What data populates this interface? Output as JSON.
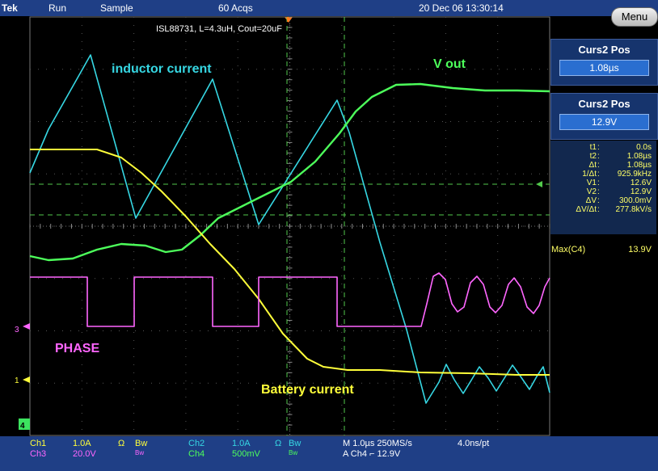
{
  "header": {
    "brand": "Tek",
    "state": "Run",
    "mode": "Sample",
    "acquisitions": "60 Acqs",
    "datetime": "20 Dec 06 13:30:14",
    "menu_label": "Menu"
  },
  "scope": {
    "title": "ISL88731, L=4.3uH, Cout=20uF",
    "trace_labels": {
      "inductor": "inductor current",
      "vout": "V out",
      "phase": "PHASE",
      "battery": "Battery current"
    },
    "markers": {
      "ch3": "3",
      "ch1": "1",
      "ch4": "4"
    }
  },
  "side_panel": {
    "cursor1": {
      "title": "Curs2 Pos",
      "value": "1.08µs"
    },
    "cursor2": {
      "title": "Curs2 Pos",
      "value": "12.9V"
    }
  },
  "measurements": [
    {
      "label": "t1",
      "value": "0.0s"
    },
    {
      "label": "t2",
      "value": "1.08µs"
    },
    {
      "label": "Δt",
      "value": "1.08µs"
    },
    {
      "label": "1/Δt",
      "value": "925.9kHz"
    },
    {
      "label": "V1",
      "value": "12.6V"
    },
    {
      "label": "V2",
      "value": "12.9V"
    },
    {
      "label": "ΔV",
      "value": "300.0mV"
    },
    {
      "label": "ΔV/Δt",
      "value": "277.8kV/s"
    }
  ],
  "measurement_extra": {
    "label": "Max(C4)",
    "value": "13.9V"
  },
  "bottom": {
    "ch1": {
      "name": "Ch1",
      "scale": "1.0A",
      "ohm": "Ω",
      "bw": "Bw"
    },
    "ch2": {
      "name": "Ch2",
      "scale": "1.0A",
      "ohm": "Ω",
      "bw": "Bw"
    },
    "ch3": {
      "name": "Ch3",
      "scale": "20.0V",
      "bw": "Bw"
    },
    "ch4": {
      "name": "Ch4",
      "scale": "500mV",
      "bw": "Bw"
    },
    "timebase": "M 1.0µs 250MS/s",
    "resolution": "4.0ns/pt",
    "trigger": "A  Ch4  ⌐  12.9V"
  },
  "colors": {
    "ch1": "#ffff3a",
    "ch2": "#36d7e3",
    "ch3": "#ff66ff",
    "ch4": "#4dff5b",
    "panel": "#16346d"
  }
}
